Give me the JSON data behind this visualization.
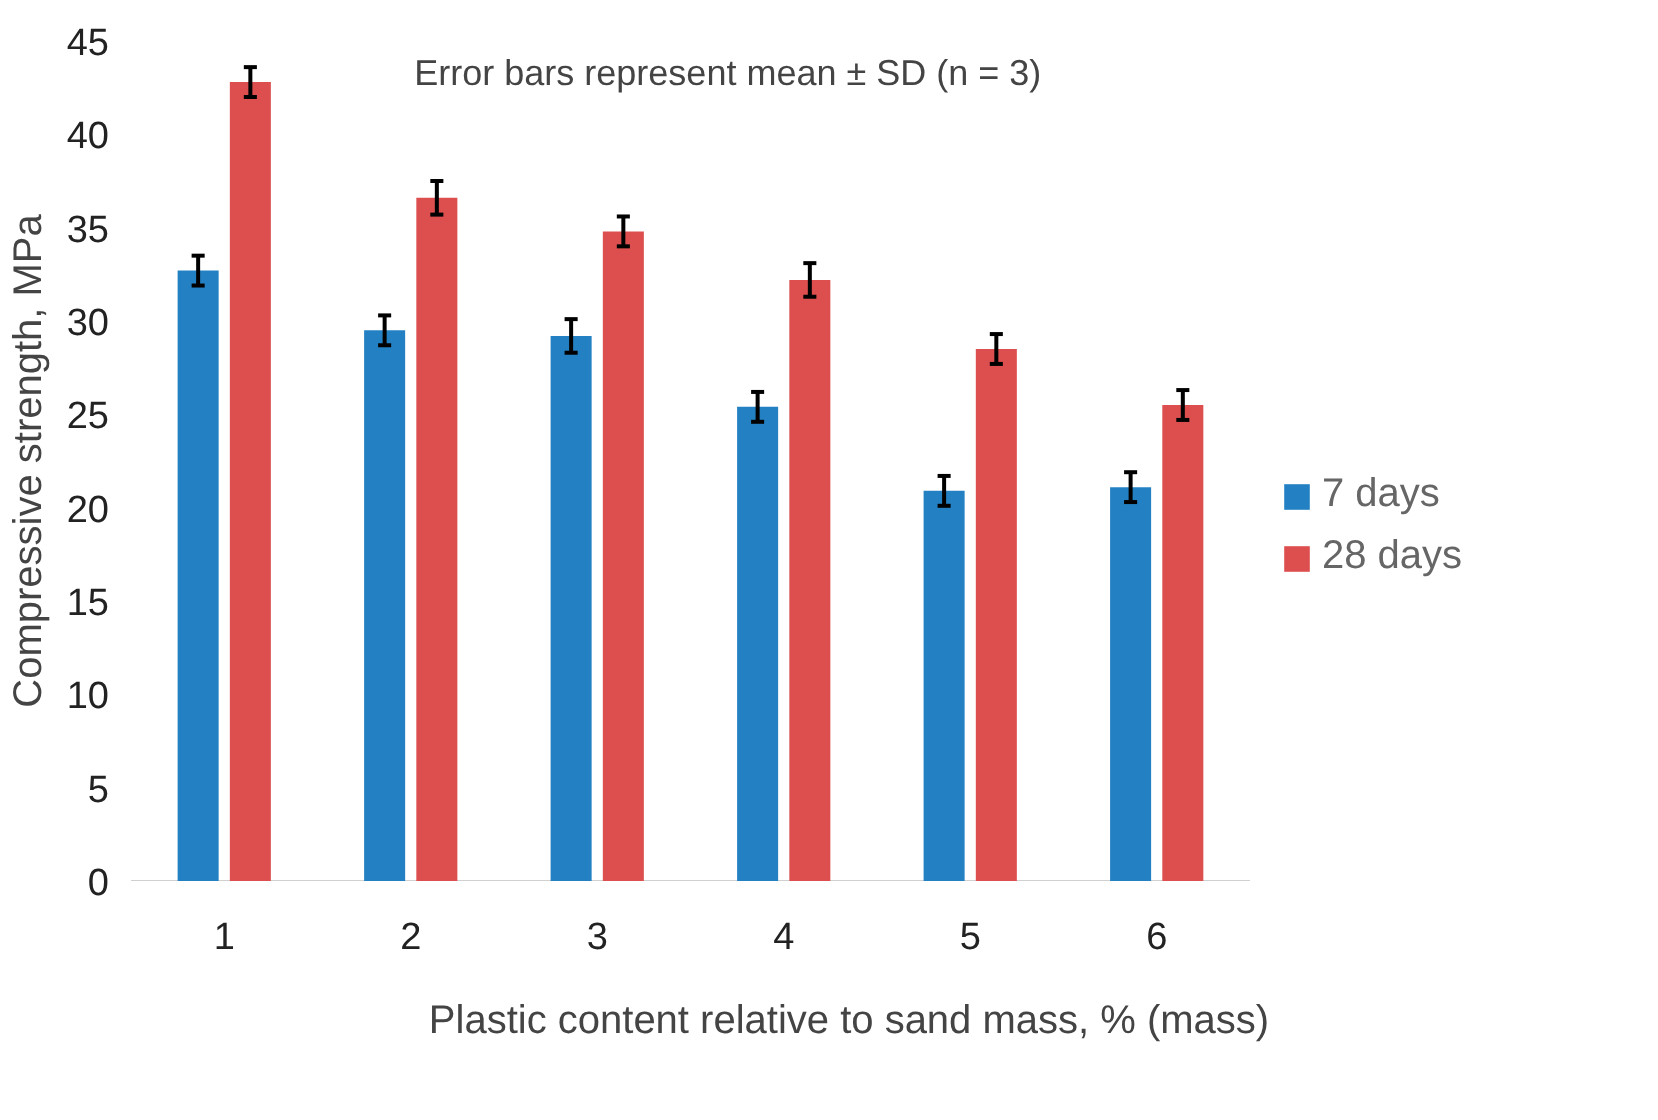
{
  "chart_data": {
    "type": "bar",
    "categories": [
      "1",
      "2",
      "3",
      "4",
      "5",
      "6"
    ],
    "xlabel": "Plastic content relative to sand mass, % (mass)",
    "ylabel": "Compressive strength, MPa",
    "annotations": [
      "Error bars represent mean ± SD (n = 3)"
    ],
    "series": [
      {
        "name": "7 days",
        "color": "#2381c3",
        "values": [
          32.7,
          29.5,
          29.2,
          25.4,
          20.9,
          21.1
        ],
        "errors": [
          0.8,
          0.8,
          0.9,
          0.8,
          0.8,
          0.8
        ]
      },
      {
        "name": "28 days",
        "color": "#dd4f4f",
        "values": [
          42.8,
          36.6,
          34.8,
          32.2,
          28.5,
          25.5
        ],
        "errors": [
          0.8,
          0.9,
          0.8,
          0.9,
          0.8,
          0.8
        ]
      }
    ],
    "ylim": [
      0,
      45
    ],
    "yticks": [
      0,
      5,
      10,
      15,
      20,
      25,
      30,
      35,
      40,
      45
    ],
    "grid": false,
    "legend": "right"
  }
}
